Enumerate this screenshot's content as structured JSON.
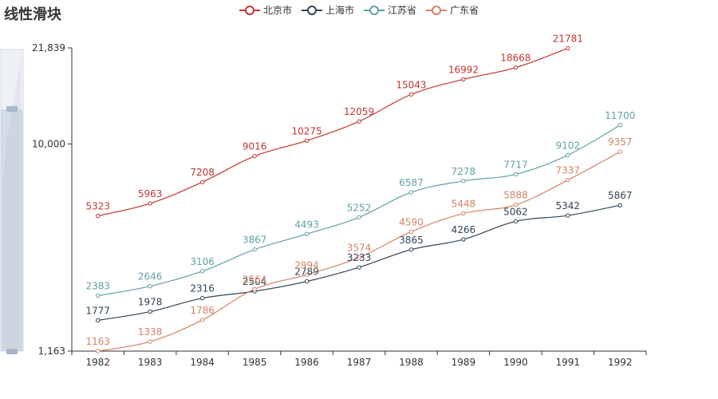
{
  "chart_data": {
    "type": "line",
    "title": "线性滑块",
    "categories": [
      "1982",
      "1983",
      "1984",
      "1985",
      "1986",
      "1987",
      "1988",
      "1989",
      "1990",
      "1991",
      "1992"
    ],
    "series": [
      {
        "name": "北京市",
        "color": "#c23531",
        "values": [
          5323,
          5963,
          7208,
          9016,
          10275,
          12059,
          15043,
          16992,
          18668,
          21781,
          null
        ]
      },
      {
        "name": "上海市",
        "color": "#2f4554",
        "values": [
          1777,
          1978,
          2316,
          2504,
          2789,
          3233,
          3865,
          4266,
          5062,
          5342,
          5867
        ]
      },
      {
        "name": "江苏省",
        "color": "#61a0a8",
        "values": [
          2383,
          2646,
          3106,
          3867,
          4493,
          5252,
          6587,
          7278,
          7717,
          9102,
          11700
        ]
      },
      {
        "name": "广东省",
        "color": "#d48265",
        "values": [
          1163,
          1338,
          1786,
          2564,
          2994,
          3574,
          4590,
          5448,
          5888,
          7337,
          9357
        ]
      }
    ],
    "yscale": "symlog",
    "ylim": [
      1163,
      21839
    ],
    "yticks": [
      "1,163",
      "10,000",
      "21,839"
    ],
    "ytick_values": [
      1163,
      10000,
      21839
    ],
    "legend_position": "top-center",
    "grid": false,
    "datazoom": "vertical-slider-left"
  }
}
